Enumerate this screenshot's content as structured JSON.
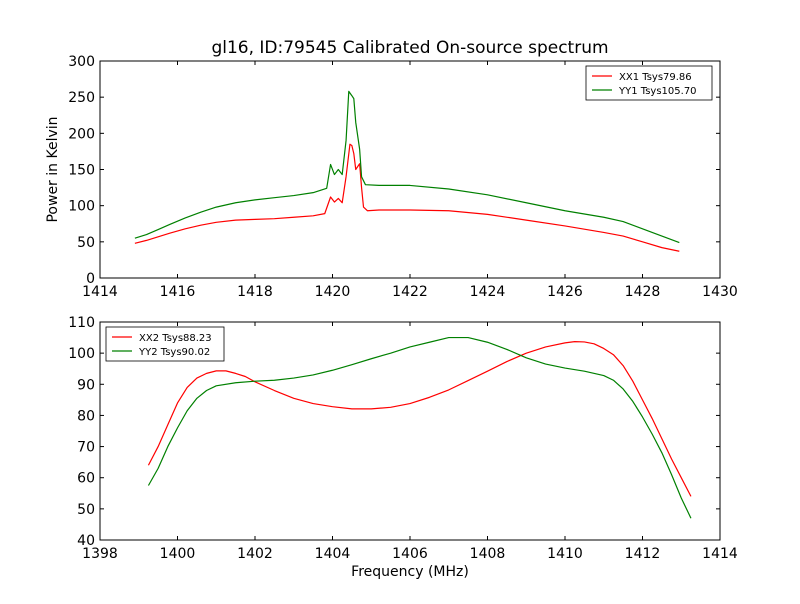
{
  "figure": {
    "title": "gl16, ID:79545 Calibrated On-source spectrum"
  },
  "chart_data": [
    {
      "type": "line",
      "title": "gl16, ID:79545 Calibrated On-source spectrum",
      "xlabel": "",
      "ylabel": "Power in Kelvin",
      "xlim": [
        1414,
        1430
      ],
      "ylim": [
        0,
        300
      ],
      "xticks": [
        1414,
        1416,
        1418,
        1420,
        1422,
        1424,
        1426,
        1428,
        1430
      ],
      "yticks": [
        0,
        50,
        100,
        150,
        200,
        250,
        300
      ],
      "grid": false,
      "legend_position": "top-right",
      "series": [
        {
          "name": "XX1 Tsys79.86",
          "color": "#ff0000",
          "points": [
            [
              1414.9,
              48
            ],
            [
              1415.2,
              52
            ],
            [
              1415.5,
              57
            ],
            [
              1415.8,
              62
            ],
            [
              1416.2,
              68
            ],
            [
              1416.6,
              73
            ],
            [
              1417.0,
              77
            ],
            [
              1417.5,
              80
            ],
            [
              1418.0,
              81
            ],
            [
              1418.5,
              82
            ],
            [
              1419.0,
              84
            ],
            [
              1419.5,
              86
            ],
            [
              1419.8,
              89
            ],
            [
              1419.95,
              112
            ],
            [
              1420.05,
              105
            ],
            [
              1420.15,
              110
            ],
            [
              1420.25,
              104
            ],
            [
              1420.35,
              140
            ],
            [
              1420.45,
              185
            ],
            [
              1420.5,
              183
            ],
            [
              1420.55,
              172
            ],
            [
              1420.6,
              150
            ],
            [
              1420.7,
              158
            ],
            [
              1420.75,
              125
            ],
            [
              1420.8,
              98
            ],
            [
              1420.9,
              93
            ],
            [
              1421.2,
              94
            ],
            [
              1422.0,
              94
            ],
            [
              1423.0,
              93
            ],
            [
              1424.0,
              88
            ],
            [
              1425.0,
              80
            ],
            [
              1426.0,
              72
            ],
            [
              1427.0,
              63
            ],
            [
              1427.5,
              58
            ],
            [
              1428.0,
              50
            ],
            [
              1428.5,
              42
            ],
            [
              1428.95,
              37
            ]
          ]
        },
        {
          "name": "YY1 Tsys105.70",
          "color": "#008000",
          "points": [
            [
              1414.9,
              55
            ],
            [
              1415.2,
              60
            ],
            [
              1415.5,
              67
            ],
            [
              1415.8,
              74
            ],
            [
              1416.2,
              83
            ],
            [
              1416.6,
              91
            ],
            [
              1417.0,
              98
            ],
            [
              1417.5,
              104
            ],
            [
              1418.0,
              108
            ],
            [
              1418.5,
              111
            ],
            [
              1419.0,
              114
            ],
            [
              1419.5,
              118
            ],
            [
              1419.85,
              124
            ],
            [
              1419.95,
              157
            ],
            [
              1420.05,
              143
            ],
            [
              1420.15,
              150
            ],
            [
              1420.25,
              143
            ],
            [
              1420.35,
              190
            ],
            [
              1420.42,
              258
            ],
            [
              1420.5,
              252
            ],
            [
              1420.55,
              248
            ],
            [
              1420.6,
              215
            ],
            [
              1420.7,
              178
            ],
            [
              1420.75,
              140
            ],
            [
              1420.85,
              129
            ],
            [
              1421.2,
              128
            ],
            [
              1422.0,
              128
            ],
            [
              1423.0,
              123
            ],
            [
              1424.0,
              115
            ],
            [
              1425.0,
              104
            ],
            [
              1426.0,
              93
            ],
            [
              1427.0,
              84
            ],
            [
              1427.5,
              78
            ],
            [
              1428.0,
              68
            ],
            [
              1428.5,
              58
            ],
            [
              1428.95,
              49
            ]
          ]
        }
      ]
    },
    {
      "type": "line",
      "title": "",
      "xlabel": "Frequency (MHz)",
      "ylabel": "",
      "xlim": [
        1398,
        1414
      ],
      "ylim": [
        40,
        110
      ],
      "xticks": [
        1398,
        1400,
        1402,
        1404,
        1406,
        1408,
        1410,
        1412,
        1414
      ],
      "yticks": [
        40,
        50,
        60,
        70,
        80,
        90,
        100,
        110
      ],
      "grid": false,
      "legend_position": "top-left",
      "series": [
        {
          "name": "XX2 Tsys88.23",
          "color": "#ff0000",
          "points": [
            [
              1399.25,
              64
            ],
            [
              1399.5,
              70
            ],
            [
              1399.75,
              77
            ],
            [
              1400.0,
              84
            ],
            [
              1400.25,
              89
            ],
            [
              1400.5,
              92
            ],
            [
              1400.75,
              93.5
            ],
            [
              1401.0,
              94.3
            ],
            [
              1401.25,
              94.3
            ],
            [
              1401.5,
              93.5
            ],
            [
              1401.75,
              92.5
            ],
            [
              1402.0,
              90.8
            ],
            [
              1402.5,
              88
            ],
            [
              1403.0,
              85.5
            ],
            [
              1403.5,
              83.8
            ],
            [
              1404.0,
              82.8
            ],
            [
              1404.5,
              82.1
            ],
            [
              1405.0,
              82.1
            ],
            [
              1405.5,
              82.6
            ],
            [
              1406.0,
              83.8
            ],
            [
              1406.5,
              85.8
            ],
            [
              1407.0,
              88.2
            ],
            [
              1407.5,
              91.2
            ],
            [
              1408.0,
              94.2
            ],
            [
              1408.5,
              97.3
            ],
            [
              1409.0,
              100
            ],
            [
              1409.5,
              102
            ],
            [
              1410.0,
              103.3
            ],
            [
              1410.25,
              103.7
            ],
            [
              1410.5,
              103.6
            ],
            [
              1410.75,
              103
            ],
            [
              1411.0,
              101.5
            ],
            [
              1411.25,
              99.5
            ],
            [
              1411.5,
              96
            ],
            [
              1411.75,
              91
            ],
            [
              1412.0,
              85
            ],
            [
              1412.25,
              79
            ],
            [
              1412.5,
              72.5
            ],
            [
              1412.75,
              66
            ],
            [
              1413.0,
              60
            ],
            [
              1413.25,
              54
            ]
          ]
        },
        {
          "name": "YY2 Tsys90.02",
          "color": "#008000",
          "points": [
            [
              1399.25,
              57.5
            ],
            [
              1399.5,
              63
            ],
            [
              1399.75,
              70
            ],
            [
              1400.0,
              76
            ],
            [
              1400.25,
              81.5
            ],
            [
              1400.5,
              85.5
            ],
            [
              1400.75,
              88
            ],
            [
              1401.0,
              89.5
            ],
            [
              1401.5,
              90.5
            ],
            [
              1402.0,
              91
            ],
            [
              1402.5,
              91.3
            ],
            [
              1403.0,
              92
            ],
            [
              1403.5,
              93
            ],
            [
              1404.0,
              94.5
            ],
            [
              1404.5,
              96.3
            ],
            [
              1405.0,
              98.2
            ],
            [
              1405.5,
              100
            ],
            [
              1406.0,
              102
            ],
            [
              1406.5,
              103.5
            ],
            [
              1407.0,
              105
            ],
            [
              1407.5,
              105
            ],
            [
              1408.0,
              103.5
            ],
            [
              1408.5,
              101.2
            ],
            [
              1409.0,
              98.5
            ],
            [
              1409.5,
              96.5
            ],
            [
              1410.0,
              95.2
            ],
            [
              1410.5,
              94.2
            ],
            [
              1411.0,
              92.8
            ],
            [
              1411.25,
              91.3
            ],
            [
              1411.5,
              88.5
            ],
            [
              1411.75,
              84.5
            ],
            [
              1412.0,
              79.5
            ],
            [
              1412.25,
              74
            ],
            [
              1412.5,
              68
            ],
            [
              1412.75,
              61
            ],
            [
              1413.0,
              53.5
            ],
            [
              1413.25,
              47
            ]
          ]
        }
      ]
    }
  ]
}
